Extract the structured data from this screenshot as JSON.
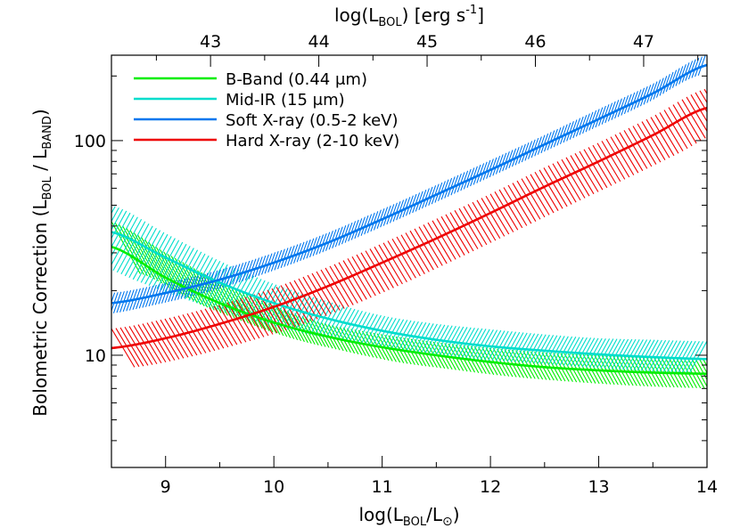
{
  "chart_data": {
    "type": "line",
    "title": "",
    "xlabel": "log(L_BOL/L_⊙)",
    "xlabel_parts": {
      "pre": "log(L",
      "sub": "BOL",
      "mid": "/L",
      "sym": "⊙",
      "post": ")"
    },
    "ylabel_parts": {
      "pre": "Bolometric Correction  (L",
      "sub1": "BOL",
      "mid": " / L",
      "sub2": "BAND",
      "post": ")"
    },
    "x2label_parts": {
      "pre": "log(L",
      "sub": "BOL",
      "mid": ") [erg s",
      "sup": "-1",
      "post": "]"
    },
    "xlim": [
      8.5,
      14
    ],
    "ylim": [
      3,
      250
    ],
    "yscale": "log",
    "x_ticks": [
      9,
      10,
      11,
      12,
      13,
      14
    ],
    "x_tick_labels": [
      "9",
      "10",
      "11",
      "12",
      "13",
      "14"
    ],
    "y_ticks": [
      10,
      100
    ],
    "y_tick_labels": [
      "10",
      "100"
    ],
    "x2_ticks": [
      43,
      44,
      45,
      46,
      47
    ],
    "x2_tick_labels": [
      "43",
      "44",
      "45",
      "46",
      "47"
    ],
    "x2_offset": 33.585,
    "legend": {
      "position": "top-left"
    },
    "grid": false,
    "series": [
      {
        "name": "B-Band (0.44 μm)",
        "color": "#00ee00",
        "x": [
          8.5,
          9.0,
          9.5,
          10.0,
          10.5,
          11.0,
          11.5,
          12.0,
          12.5,
          13.0,
          13.5,
          14.0
        ],
        "y": [
          32.0,
          23.0,
          17.5,
          14.2,
          12.2,
          10.9,
          10.0,
          9.3,
          8.8,
          8.5,
          8.3,
          8.2
        ],
        "y_lower": [
          24.0,
          18.0,
          14.5,
          12.0,
          10.5,
          9.3,
          8.6,
          8.0,
          7.6,
          7.3,
          7.1,
          7.0
        ],
        "y_upper": [
          42.0,
          30.0,
          22.0,
          17.0,
          14.0,
          12.5,
          11.5,
          10.8,
          10.3,
          10.0,
          9.7,
          9.6
        ]
      },
      {
        "name": "Mid-IR (15 μm)",
        "color": "#00ddcc",
        "x": [
          8.5,
          9.0,
          9.5,
          10.0,
          10.5,
          11.0,
          11.5,
          12.0,
          12.5,
          13.0,
          13.5,
          14.0
        ],
        "y": [
          37.5,
          28.5,
          21.8,
          17.5,
          14.8,
          13.0,
          11.8,
          11.0,
          10.5,
          10.1,
          9.8,
          9.6
        ],
        "y_lower": [
          28.0,
          22.0,
          17.5,
          14.5,
          12.5,
          11.2,
          10.3,
          9.6,
          9.2,
          8.8,
          8.5,
          8.3
        ],
        "y_upper": [
          50.0,
          37.0,
          27.5,
          21.5,
          17.8,
          15.3,
          14.0,
          13.2,
          12.5,
          12.0,
          11.8,
          11.6
        ]
      },
      {
        "name": "Soft X-ray (0.5-2 keV)",
        "color": "#0077ee",
        "x": [
          8.5,
          9.0,
          9.5,
          10.0,
          10.5,
          11.0,
          11.5,
          12.0,
          12.5,
          13.0,
          13.5,
          14.0
        ],
        "y": [
          17.5,
          19.5,
          22.5,
          27.0,
          33.5,
          43.0,
          56.0,
          73.0,
          96.0,
          126.0,
          166.0,
          225.0
        ],
        "y_lower": [
          15.5,
          17.3,
          20.0,
          24.2,
          30.0,
          38.5,
          50.0,
          65.5,
          86.0,
          113.0,
          149.0,
          202.0
        ],
        "y_upper": [
          19.5,
          21.7,
          25.0,
          30.0,
          37.2,
          47.8,
          62.0,
          81.0,
          106.0,
          140.0,
          184.0,
          250.0
        ]
      },
      {
        "name": "Hard X-ray (2-10 keV)",
        "color": "#ee0000",
        "x": [
          8.5,
          9.0,
          9.5,
          10.0,
          10.5,
          11.0,
          11.5,
          12.0,
          12.5,
          13.0,
          13.5,
          14.0
        ],
        "y": [
          10.8,
          12.0,
          14.0,
          16.8,
          21.0,
          27.0,
          35.0,
          46.0,
          61.0,
          80.0,
          106.0,
          142.0
        ],
        "y_lower": [
          8.8,
          9.8,
          11.4,
          13.6,
          17.0,
          21.8,
          28.5,
          37.5,
          49.5,
          65.0,
          86.0,
          115.0
        ],
        "y_upper": [
          13.3,
          14.8,
          17.2,
          20.6,
          25.8,
          33.2,
          43.2,
          56.5,
          75.0,
          98.0,
          130.0,
          175.0
        ]
      }
    ]
  }
}
